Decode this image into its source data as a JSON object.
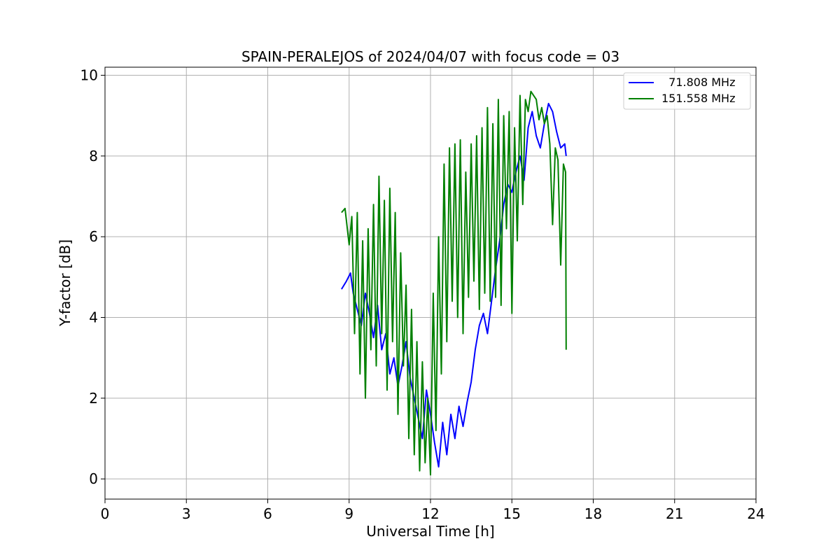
{
  "chart_data": {
    "type": "line",
    "title": "SPAIN-PERALEJOS of 2024/04/07 with focus code = 03",
    "xlabel": "Universal Time [h]",
    "ylabel": "Y-factor [dB]",
    "xlim": [
      0,
      24
    ],
    "ylim": [
      -0.5,
      10.2
    ],
    "xticks": [
      0,
      3,
      6,
      9,
      12,
      15,
      18,
      21,
      24
    ],
    "yticks": [
      0,
      2,
      4,
      6,
      8,
      10
    ],
    "grid": true,
    "legend_position": "top-right",
    "series": [
      {
        "name": "  71.808 MHz",
        "color": "#0000ff",
        "x": [
          8.72,
          8.9,
          9.05,
          9.15,
          9.3,
          9.45,
          9.6,
          9.75,
          9.9,
          10.05,
          10.2,
          10.35,
          10.5,
          10.65,
          10.8,
          10.95,
          11.1,
          11.25,
          11.4,
          11.55,
          11.7,
          11.85,
          12.0,
          12.15,
          12.3,
          12.45,
          12.6,
          12.75,
          12.9,
          13.05,
          13.2,
          13.35,
          13.5,
          13.65,
          13.8,
          13.95,
          14.1,
          14.25,
          14.4,
          14.55,
          14.7,
          14.85,
          15.0,
          15.15,
          15.3,
          15.45,
          15.6,
          15.75,
          15.9,
          16.05,
          16.2,
          16.35,
          16.5,
          16.65,
          16.8,
          16.95,
          17.0
        ],
        "y": [
          4.7,
          4.9,
          5.1,
          4.6,
          4.2,
          3.8,
          4.6,
          4.1,
          3.5,
          4.3,
          3.2,
          3.6,
          2.6,
          3.0,
          2.3,
          2.8,
          3.4,
          2.5,
          2.0,
          1.5,
          1.0,
          2.2,
          1.6,
          0.9,
          0.3,
          1.4,
          0.6,
          1.6,
          1.0,
          1.8,
          1.3,
          1.9,
          2.4,
          3.2,
          3.8,
          4.1,
          3.6,
          4.4,
          5.2,
          5.9,
          6.8,
          7.3,
          7.1,
          7.6,
          8.0,
          7.4,
          8.7,
          9.1,
          8.5,
          8.2,
          8.8,
          9.3,
          9.1,
          8.6,
          8.2,
          8.3,
          8.0
        ]
      },
      {
        "name": "151.558 MHz",
        "color": "#008000",
        "x": [
          8.72,
          8.85,
          9.0,
          9.1,
          9.2,
          9.3,
          9.4,
          9.5,
          9.6,
          9.7,
          9.8,
          9.9,
          10.0,
          10.1,
          10.2,
          10.3,
          10.4,
          10.5,
          10.6,
          10.7,
          10.8,
          10.9,
          11.0,
          11.1,
          11.2,
          11.3,
          11.4,
          11.5,
          11.6,
          11.7,
          11.8,
          11.9,
          12.0,
          12.1,
          12.2,
          12.3,
          12.4,
          12.5,
          12.6,
          12.7,
          12.8,
          12.9,
          13.0,
          13.1,
          13.2,
          13.3,
          13.4,
          13.5,
          13.6,
          13.7,
          13.8,
          13.9,
          14.0,
          14.1,
          14.2,
          14.3,
          14.4,
          14.5,
          14.6,
          14.7,
          14.8,
          14.9,
          15.0,
          15.1,
          15.2,
          15.3,
          15.4,
          15.5,
          15.6,
          15.7,
          15.8,
          15.9,
          16.0,
          16.1,
          16.2,
          16.3,
          16.4,
          16.5,
          16.6,
          16.7,
          16.8,
          16.9,
          16.98,
          17.0
        ],
        "y": [
          6.6,
          6.7,
          5.8,
          6.5,
          3.6,
          6.6,
          2.6,
          5.9,
          2.0,
          6.2,
          3.2,
          6.8,
          2.8,
          7.5,
          3.6,
          6.9,
          2.2,
          7.2,
          3.4,
          6.6,
          1.6,
          5.6,
          2.8,
          4.8,
          1.0,
          4.2,
          0.6,
          3.4,
          0.2,
          2.9,
          0.4,
          2.0,
          0.1,
          4.6,
          1.2,
          6.0,
          2.6,
          7.8,
          3.4,
          8.2,
          4.4,
          8.3,
          4.0,
          8.4,
          3.6,
          7.6,
          4.5,
          8.3,
          4.9,
          8.5,
          4.2,
          8.7,
          4.6,
          9.2,
          4.4,
          8.8,
          4.5,
          9.4,
          4.3,
          9.0,
          6.2,
          9.1,
          4.1,
          8.7,
          5.9,
          9.5,
          6.8,
          9.4,
          9.1,
          9.6,
          9.5,
          9.4,
          8.9,
          9.2,
          8.8,
          9.0,
          8.3,
          6.3,
          8.2,
          7.9,
          5.3,
          7.8,
          7.6,
          3.2
        ]
      }
    ]
  }
}
